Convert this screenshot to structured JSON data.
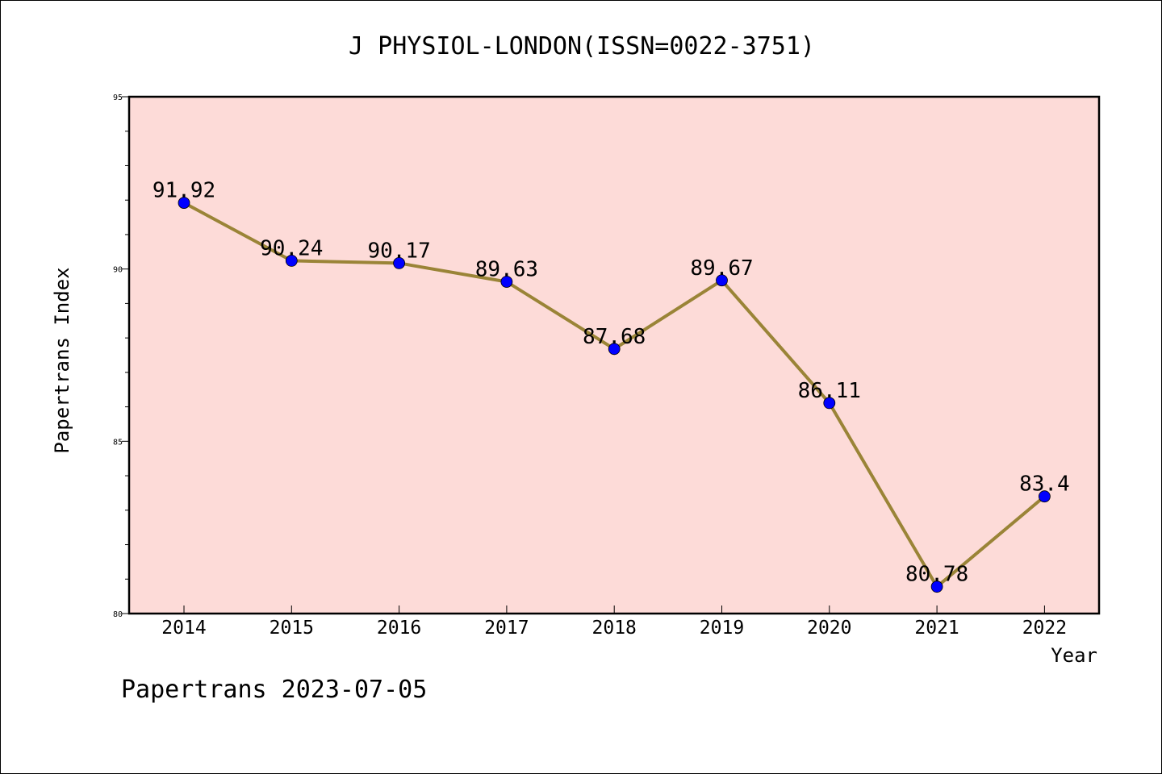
{
  "chart_data": {
    "type": "line",
    "title": "J PHYSIOL-LONDON(ISSN=0022-3751)",
    "xlabel": "Year",
    "ylabel": "Papertrans Index",
    "categories": [
      "2014",
      "2015",
      "2016",
      "2017",
      "2018",
      "2019",
      "2020",
      "2021",
      "2022"
    ],
    "series": [
      {
        "values": [
          91.92,
          90.24,
          90.17,
          89.63,
          87.68,
          89.67,
          86.11,
          80.78,
          83.4
        ],
        "labels": [
          "91.92",
          "90.24",
          "90.17",
          "89.63",
          "87.68",
          "89.67",
          "86.11",
          "80.78",
          "83.4"
        ]
      }
    ],
    "ylim": [
      80,
      95
    ],
    "yticks": [
      "80",
      "85",
      "90",
      "95"
    ],
    "grid": false,
    "legend": "none",
    "footer": "Papertrans 2023-07-05",
    "colors": {
      "plot_background": "#fddbd8",
      "line": "#9a8437",
      "marker": "#0000ff"
    }
  }
}
